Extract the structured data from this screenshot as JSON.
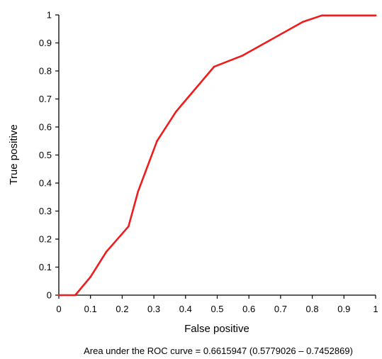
{
  "chart_data": {
    "type": "line",
    "title": "",
    "xlabel": "False positive",
    "ylabel": "True positive",
    "xlim": [
      0,
      1
    ],
    "ylim": [
      0,
      1
    ],
    "x_ticks": [
      "0",
      "0.1",
      "0.2",
      "0.3",
      "0.4",
      "0.5",
      "0.6",
      "0.7",
      "0.8",
      "0.9",
      "1"
    ],
    "y_ticks": [
      "0",
      "0.1",
      "0.2",
      "0.3",
      "0.4",
      "0.5",
      "0.6",
      "0.7",
      "0.8",
      "0.9",
      "1"
    ],
    "grid": false,
    "legend": "none",
    "series": [
      {
        "color": "#ee1c1c",
        "x": [
          0,
          0.052,
          0.1,
          0.15,
          0.22,
          0.25,
          0.31,
          0.37,
          0.49,
          0.58,
          0.77,
          0.83,
          1.0
        ],
        "y": [
          0,
          0,
          0.065,
          0.155,
          0.245,
          0.37,
          0.55,
          0.655,
          0.815,
          0.855,
          0.975,
          0.998,
          0.998
        ]
      }
    ],
    "annotation": "Area under the ROC curve = 0.6615947 (0.5779026 – 0.7452869)"
  }
}
